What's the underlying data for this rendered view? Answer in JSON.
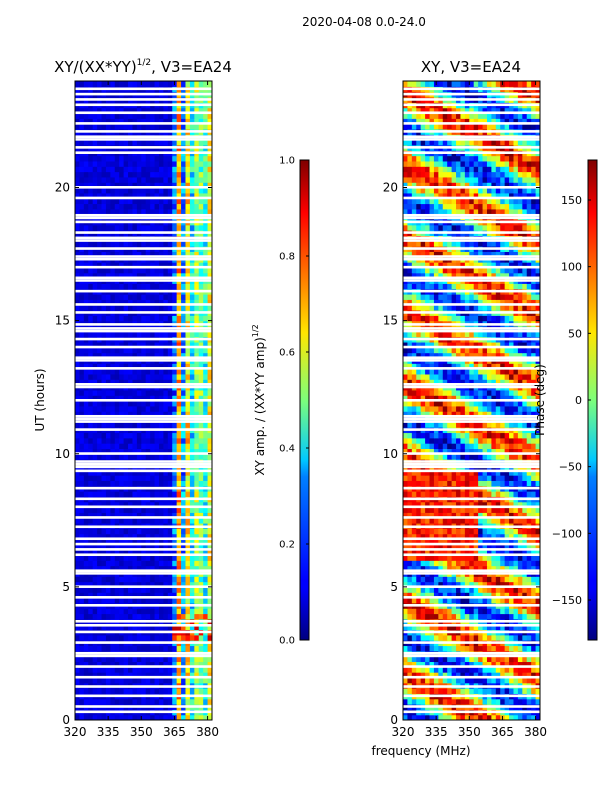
{
  "figure": {
    "suptitle": "2020-04-08 0.0-24.0",
    "xlabel": "frequency (MHz)"
  },
  "chart_data": [
    {
      "type": "heatmap",
      "title_main": "XY/(XX*YY)",
      "title_exp": "1/2",
      "title_tail": ", V3=EA24",
      "xlabel": "",
      "ylabel": "UT (hours)",
      "xlim": [
        320,
        382
      ],
      "ylim": [
        0,
        24
      ],
      "xticks": [
        320,
        335,
        350,
        365,
        380
      ],
      "yticks": [
        0,
        5,
        10,
        15,
        20
      ],
      "bright_band_mhz": [
        364,
        381
      ],
      "colorbar": {
        "label_main": "XY amp. / (XX*YY amp)",
        "label_exp": "1/2",
        "range": [
          0.0,
          1.0
        ],
        "ticks": [
          "0.0",
          "0.2",
          "0.4",
          "0.6",
          "0.8",
          "1.0"
        ]
      }
    },
    {
      "type": "heatmap",
      "title": "XY, V3=EA24",
      "xlabel": "frequency (MHz)",
      "ylabel": "",
      "xlim": [
        320,
        382
      ],
      "ylim": [
        0,
        24
      ],
      "xticks": [
        320,
        335,
        350,
        365,
        380
      ],
      "yticks": [
        0,
        5,
        10,
        15,
        20
      ],
      "colorbar": {
        "label": "Phase (deg)",
        "range": [
          -180,
          180
        ],
        "ticks": [
          "150",
          "100",
          "50",
          "0",
          "−50",
          "−100",
          "−150"
        ]
      }
    }
  ],
  "flagged_hours": [
    0.3,
    0.5,
    0.9,
    1.25,
    1.6,
    2.0,
    2.4,
    2.5,
    2.9,
    3.3,
    3.55,
    3.7,
    4.3,
    4.6,
    5.0,
    5.5,
    5.6,
    6.2,
    6.4,
    6.6,
    6.8,
    7.25,
    7.6,
    8.0,
    8.3,
    8.7,
    9.35,
    9.5,
    9.6,
    9.7,
    10.0,
    10.9,
    11.2,
    11.3,
    11.4,
    12.0,
    12.5,
    12.6,
    13.2,
    13.5,
    13.6,
    14.0,
    14.3,
    14.6,
    14.7,
    14.85,
    15.3,
    15.6,
    16.1,
    16.5,
    16.6,
    17.0,
    17.3,
    17.4,
    17.7,
    18.0,
    18.1,
    18.3,
    18.7,
    18.85,
    18.95,
    19.6,
    20.0,
    21.3,
    21.5,
    21.8,
    21.9,
    22.1,
    22.4,
    22.8,
    23.1,
    23.3,
    23.5,
    23.7
  ]
}
